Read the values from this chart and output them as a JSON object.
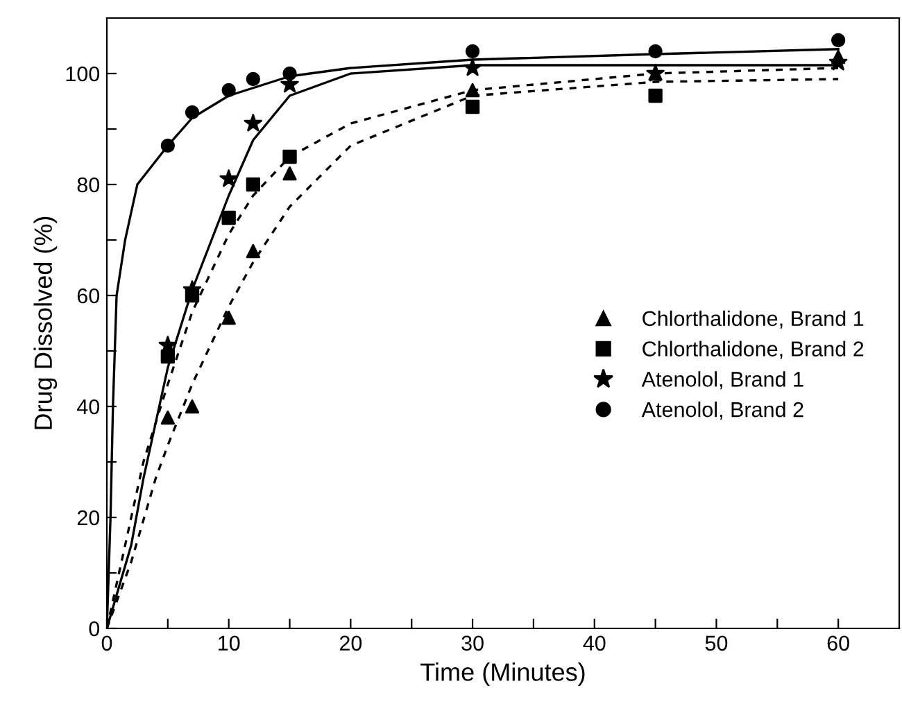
{
  "chart_data": {
    "type": "scatter",
    "xlabel": "Time (Minutes)",
    "ylabel": "Drug Dissolved (%)",
    "xlim": [
      0,
      65
    ],
    "ylim": [
      0,
      110
    ],
    "xticks": [
      0,
      {
        "value": 5,
        "label": null
      },
      10,
      {
        "value": 15,
        "label": null
      },
      20,
      {
        "value": 25,
        "label": null
      },
      30,
      {
        "value": 35,
        "label": null
      },
      40,
      {
        "value": 45,
        "label": null
      },
      50,
      {
        "value": 55,
        "label": null
      },
      60
    ],
    "yticks": [
      0,
      {
        "value": 10,
        "label": null
      },
      20,
      {
        "value": 30,
        "label": null
      },
      40,
      {
        "value": 50,
        "label": null
      },
      60,
      {
        "value": 70,
        "label": null
      },
      80,
      {
        "value": 90,
        "label": null
      },
      100
    ],
    "grid": false,
    "legend": "right",
    "series": [
      {
        "name": "Chlorthalidone, Brand 1",
        "marker": "triangle",
        "color": "#000000",
        "x": [
          5,
          7,
          10,
          12,
          15,
          30,
          45,
          60
        ],
        "values": [
          38,
          40,
          56,
          68,
          82,
          97,
          100,
          103
        ]
      },
      {
        "name": "Chlorthalidone, Brand 2",
        "marker": "square",
        "color": "#000000",
        "x": [
          5,
          7,
          10,
          12,
          15,
          30,
          45
        ],
        "values": [
          49,
          60,
          74,
          80,
          85,
          94,
          96
        ]
      },
      {
        "name": "Atenolol, Brand 1",
        "marker": "star",
        "color": "#000000",
        "x": [
          5,
          7,
          10,
          12,
          15,
          30,
          45,
          60
        ],
        "values": [
          51,
          61,
          81,
          91,
          98,
          101,
          100,
          102
        ]
      },
      {
        "name": "Atenolol, Brand 2",
        "marker": "circle",
        "color": "#000000",
        "x": [
          5,
          7,
          10,
          12,
          15,
          30,
          45,
          60
        ],
        "values": [
          87,
          93,
          97,
          99,
          100,
          104,
          104,
          106
        ]
      },
      {
        "type": "line",
        "line_style": "dashed",
        "color": "#000000",
        "x": [
          0,
          2,
          4,
          5,
          7,
          10,
          12,
          15,
          20,
          30,
          45,
          60
        ],
        "values": [
          0,
          12,
          27,
          33,
          44,
          58,
          66,
          76,
          87,
          96,
          98.5,
          99
        ]
      },
      {
        "type": "line",
        "line_style": "dashed",
        "color": "#000000",
        "x": [
          0,
          1.5,
          3,
          5,
          7,
          10,
          12,
          15,
          20,
          30,
          45,
          60
        ],
        "values": [
          0,
          15,
          30,
          44,
          57,
          71,
          78,
          85,
          91,
          97,
          100,
          101
        ]
      },
      {
        "type": "line",
        "line_style": "solid",
        "color": "#000000",
        "x": [
          0,
          2,
          3,
          5,
          7,
          10,
          12,
          15,
          20,
          30,
          45,
          60
        ],
        "values": [
          0,
          15,
          27,
          47,
          61,
          78,
          88,
          96,
          100,
          101.5,
          101.5,
          101.5
        ]
      },
      {
        "type": "line",
        "line_style": "solid",
        "color": "#000000",
        "x": [
          0,
          0.3,
          0.5,
          0.8,
          1.5,
          2.5,
          5,
          7,
          10,
          15,
          20,
          30,
          45,
          60
        ],
        "values": [
          0,
          20,
          40,
          60,
          70,
          80,
          87,
          92,
          96,
          99.5,
          101,
          102.5,
          103.5,
          104.4
        ]
      }
    ]
  }
}
